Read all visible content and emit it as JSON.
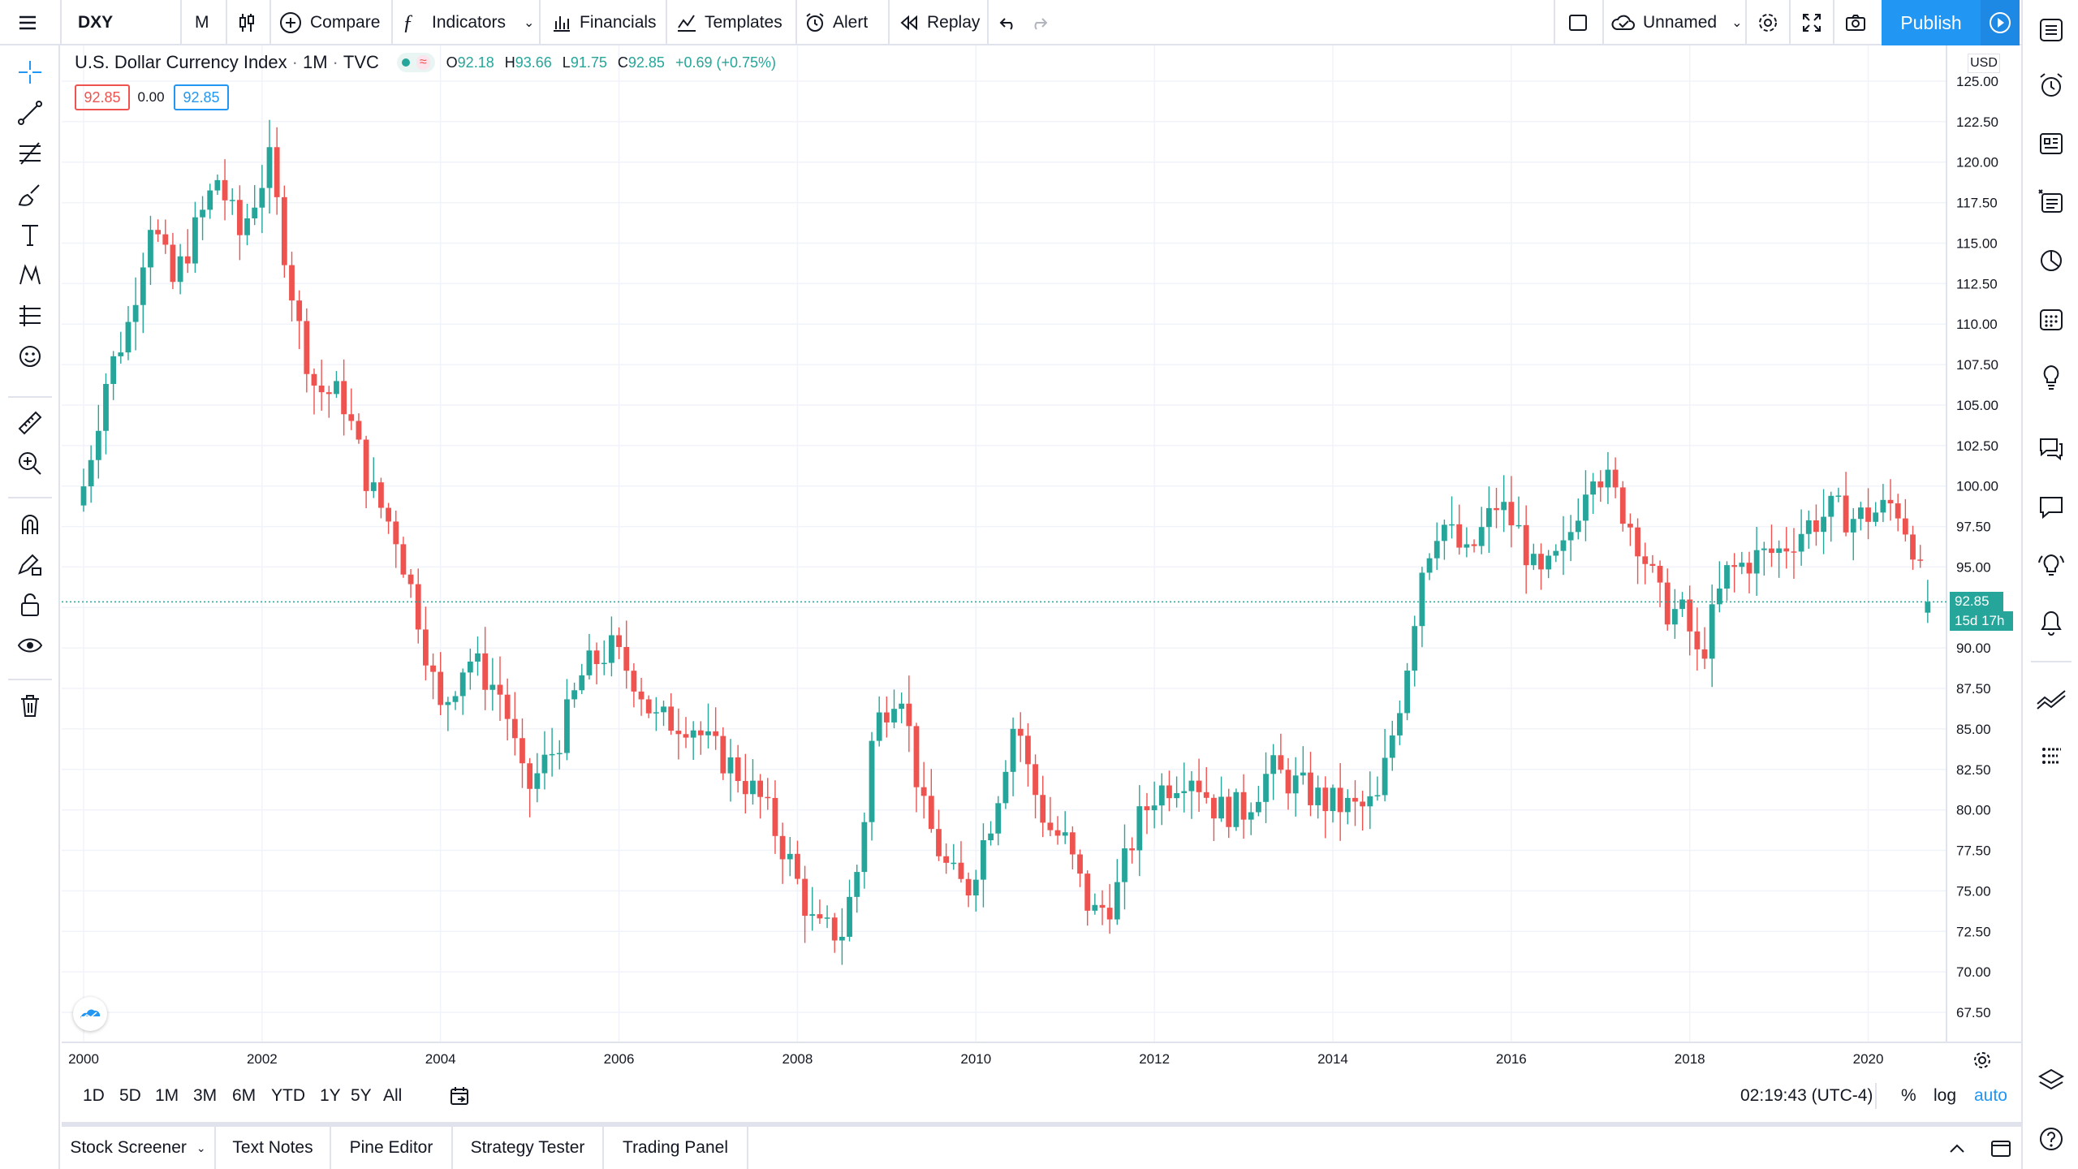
{
  "toolbar": {
    "symbol": "DXY",
    "interval": "M",
    "compare": "Compare",
    "indicators": "Indicators",
    "financials": "Financials",
    "templates": "Templates",
    "alert": "Alert",
    "replay": "Replay",
    "layout_name": "Unnamed",
    "publish": "Publish"
  },
  "legend": {
    "title": "U.S. Dollar Currency Index",
    "interval": "1M",
    "source": "TVC",
    "open_label": "O",
    "open": "92.18",
    "high_label": "H",
    "high": "93.66",
    "low_label": "L",
    "low": "91.75",
    "close_label": "C",
    "close": "92.85",
    "change": "+0.69 (+0.75%)",
    "bid": "92.85",
    "spread": "0.00",
    "ask": "92.85"
  },
  "price_scale": {
    "currency": "USD",
    "last_price": "92.85",
    "countdown": "15d 17h"
  },
  "colors": {
    "up": "#26a69a",
    "down": "#ef5350",
    "accent": "#2196f3",
    "grid": "#f0f3fa",
    "border": "#e0e3eb"
  },
  "chart_data": {
    "type": "candlestick",
    "interval": "monthly",
    "x_ticks": [
      "2000",
      "2002",
      "2004",
      "2006",
      "2008",
      "2010",
      "2012",
      "2014",
      "2016",
      "2018",
      "2020"
    ],
    "y_ticks": [
      "125.00",
      "122.50",
      "120.00",
      "117.50",
      "115.00",
      "112.50",
      "110.00",
      "107.50",
      "105.00",
      "102.50",
      "100.00",
      "97.50",
      "95.00",
      "92.50",
      "90.00",
      "87.50",
      "85.00",
      "82.50",
      "80.00",
      "77.50",
      "75.00",
      "72.50",
      "70.00",
      "67.50"
    ],
    "ylim": [
      66.0,
      126.5
    ],
    "xlim": [
      2000.0,
      2020.85
    ],
    "anchors_close": [
      [
        2000.0,
        100.0
      ],
      [
        2000.25,
        106.5
      ],
      [
        2000.5,
        110.0
      ],
      [
        2000.75,
        116.5
      ],
      [
        2001.0,
        112.5
      ],
      [
        2001.5,
        119.0
      ],
      [
        2001.75,
        115.5
      ],
      [
        2002.08,
        120.0
      ],
      [
        2002.4,
        110.0
      ],
      [
        2002.6,
        106.0
      ],
      [
        2002.9,
        105.5
      ],
      [
        2003.2,
        100.0
      ],
      [
        2003.5,
        97.0
      ],
      [
        2003.75,
        92.0
      ],
      [
        2004.0,
        86.0
      ],
      [
        2004.3,
        89.5
      ],
      [
        2004.7,
        87.0
      ],
      [
        2004.95,
        81.0
      ],
      [
        2005.3,
        84.0
      ],
      [
        2005.6,
        88.5
      ],
      [
        2005.9,
        90.0
      ],
      [
        2006.2,
        88.0
      ],
      [
        2006.4,
        85.5
      ],
      [
        2006.8,
        85.5
      ],
      [
        2007.0,
        84.0
      ],
      [
        2007.3,
        82.5
      ],
      [
        2007.6,
        80.5
      ],
      [
        2007.9,
        77.0
      ],
      [
        2008.2,
        72.5
      ],
      [
        2008.5,
        72.5
      ],
      [
        2008.7,
        77.0
      ],
      [
        2008.85,
        85.0
      ],
      [
        2009.15,
        88.0
      ],
      [
        2009.4,
        80.0
      ],
      [
        2009.7,
        76.0
      ],
      [
        2009.9,
        75.0
      ],
      [
        2010.2,
        80.0
      ],
      [
        2010.45,
        86.0
      ],
      [
        2010.6,
        82.0
      ],
      [
        2010.8,
        79.0
      ],
      [
        2011.0,
        78.0
      ],
      [
        2011.3,
        73.5
      ],
      [
        2011.55,
        74.5
      ],
      [
        2011.8,
        79.0
      ],
      [
        2012.0,
        81.0
      ],
      [
        2012.4,
        82.5
      ],
      [
        2012.7,
        80.0
      ],
      [
        2013.0,
        80.0
      ],
      [
        2013.3,
        82.5
      ],
      [
        2013.6,
        81.5
      ],
      [
        2013.9,
        80.5
      ],
      [
        2014.3,
        80.0
      ],
      [
        2014.5,
        80.5
      ],
      [
        2014.8,
        88.0
      ],
      [
        2015.0,
        95.0
      ],
      [
        2015.2,
        98.0
      ],
      [
        2015.5,
        95.5
      ],
      [
        2015.85,
        99.0
      ],
      [
        2016.1,
        97.0
      ],
      [
        2016.3,
        94.0
      ],
      [
        2016.6,
        96.0
      ],
      [
        2016.9,
        101.5
      ],
      [
        2017.1,
        100.0
      ],
      [
        2017.4,
        97.0
      ],
      [
        2017.7,
        92.5
      ],
      [
        2017.95,
        92.0
      ],
      [
        2018.1,
        89.0
      ],
      [
        2018.4,
        94.5
      ],
      [
        2018.7,
        95.5
      ],
      [
        2019.0,
        96.0
      ],
      [
        2019.3,
        97.5
      ],
      [
        2019.6,
        98.5
      ],
      [
        2019.85,
        98.0
      ],
      [
        2020.15,
        98.5
      ],
      [
        2020.3,
        99.0
      ],
      [
        2020.5,
        96.5
      ],
      [
        2020.62,
        93.5
      ],
      [
        2020.7,
        92.2
      ],
      [
        2020.75,
        92.85
      ]
    ]
  },
  "bottom": {
    "ranges": [
      "1D",
      "5D",
      "1M",
      "3M",
      "6M",
      "YTD",
      "1Y",
      "5Y",
      "All"
    ],
    "time": "02:19:43 (UTC-4)",
    "pct": "%",
    "log": "log",
    "auto": "auto"
  },
  "panels": [
    "Stock Screener",
    "Text Notes",
    "Pine Editor",
    "Strategy Tester",
    "Trading Panel"
  ]
}
